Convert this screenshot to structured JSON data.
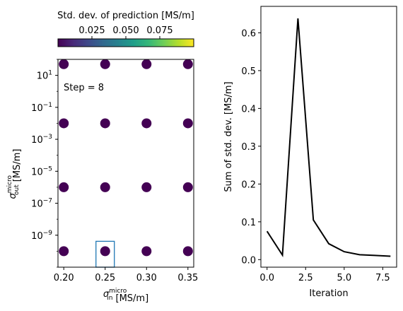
{
  "chart_data": [
    {
      "type": "scatter",
      "colorbar": {
        "label": "Std. dev. of prediction [MS/m]",
        "ticks": [
          0.025,
          0.05,
          0.075
        ],
        "tick_labels": [
          "0.025",
          "0.050",
          "0.075"
        ],
        "range": [
          0.0,
          0.1
        ],
        "colormap": "viridis",
        "colors": [
          "#440154",
          "#482878",
          "#3e4989",
          "#31688e",
          "#26828e",
          "#1f9e89",
          "#35b779",
          "#6ece58",
          "#b5de2b",
          "#fde725"
        ],
        "orientation": "horizontal",
        "placement": "top"
      },
      "xlabel_main": "σ",
      "xlabel_sup": "micro",
      "xlabel_sub": "in",
      "xlabel_unit": "[MS/m]",
      "ylabel_main": "σ",
      "ylabel_sup": "micro",
      "ylabel_sub": "out",
      "ylabel_unit": "[MS/m]",
      "xlim": [
        0.193,
        0.357
      ],
      "xticks": [
        0.2,
        0.25,
        0.3,
        0.35
      ],
      "xtick_labels": [
        "0.20",
        "0.25",
        "0.30",
        "0.35"
      ],
      "yscale": "log",
      "ylim": [
        1e-11,
        100.0
      ],
      "yticks": [
        {
          "value": 10.0,
          "base": "10",
          "exp": "1"
        },
        {
          "value": 0.1,
          "base": "10",
          "exp": "−1"
        },
        {
          "value": 0.001,
          "base": "10",
          "exp": "−3"
        },
        {
          "value": 1e-05,
          "base": "10",
          "exp": "−5"
        },
        {
          "value": 1e-07,
          "base": "10",
          "exp": "−7"
        },
        {
          "value": 1e-09,
          "base": "10",
          "exp": "−9"
        }
      ],
      "annotation": "Step = 8",
      "point_color": "#440154",
      "points": [
        {
          "x": 0.2,
          "y": 50,
          "v": 0.0
        },
        {
          "x": 0.25,
          "y": 50,
          "v": 0.0
        },
        {
          "x": 0.3,
          "y": 50,
          "v": 0.0
        },
        {
          "x": 0.35,
          "y": 50,
          "v": 0.0
        },
        {
          "x": 0.2,
          "y": 0.01,
          "v": 0.0
        },
        {
          "x": 0.25,
          "y": 0.01,
          "v": 0.0
        },
        {
          "x": 0.3,
          "y": 0.01,
          "v": 0.0
        },
        {
          "x": 0.35,
          "y": 0.01,
          "v": 0.0
        },
        {
          "x": 0.2,
          "y": 1e-06,
          "v": 0.0
        },
        {
          "x": 0.25,
          "y": 1e-06,
          "v": 0.0
        },
        {
          "x": 0.3,
          "y": 1e-06,
          "v": 0.0
        },
        {
          "x": 0.35,
          "y": 1e-06,
          "v": 0.0
        },
        {
          "x": 0.2,
          "y": 1e-10,
          "v": 0.0
        },
        {
          "x": 0.25,
          "y": 1e-10,
          "v": 0.0
        },
        {
          "x": 0.3,
          "y": 1e-10,
          "v": 0.0
        },
        {
          "x": 0.35,
          "y": 1e-10,
          "v": 0.0
        }
      ],
      "highlight": {
        "x": 0.25,
        "y": 1e-10,
        "color": "#1f77b4"
      }
    },
    {
      "type": "line",
      "xlabel": "Iteration",
      "ylabel": "Sum of std. dev. [MS/m]",
      "xlim": [
        -0.4,
        8.4
      ],
      "ylim": [
        -0.02,
        0.67
      ],
      "xticks": [
        0.0,
        2.5,
        5.0,
        7.5
      ],
      "xtick_labels": [
        "0.0",
        "2.5",
        "5.0",
        "7.5"
      ],
      "yticks": [
        0.0,
        0.1,
        0.2,
        0.3,
        0.4,
        0.5,
        0.6
      ],
      "ytick_labels": [
        "0.0",
        "0.1",
        "0.2",
        "0.3",
        "0.4",
        "0.5",
        "0.6"
      ],
      "line_color": "#000000",
      "x": [
        0,
        1,
        2,
        3,
        4,
        5,
        6,
        7,
        8
      ],
      "y": [
        0.075,
        0.012,
        0.638,
        0.105,
        0.042,
        0.021,
        0.013,
        0.011,
        0.009
      ]
    }
  ]
}
